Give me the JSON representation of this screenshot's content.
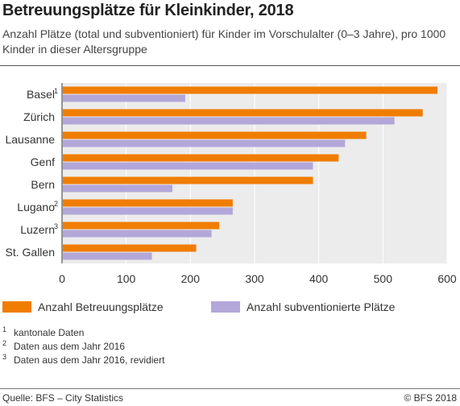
{
  "title": "Betreuungsplätze für Kleinkinder, 2018",
  "subtitle": "Anzahl Plätze (total und subventioniert) für Kinder im Vorschulalter (0–3 Jahre), pro 1000 Kinder in dieser Altersgruppe",
  "colors": {
    "total": "#f07d00",
    "subsidized": "#b3a7d9",
    "plot_bg": "#ececec",
    "grid": "#ffffff"
  },
  "chart_data": {
    "type": "bar",
    "orientation": "horizontal",
    "title": "Betreuungsplätze für Kleinkinder, 2018",
    "xlabel": "",
    "ylabel": "",
    "xlim": [
      0,
      600
    ],
    "x_ticks": [
      "0",
      "100",
      "200",
      "300",
      "400",
      "500",
      "600"
    ],
    "grid": true,
    "legend_position": "bottom",
    "categories": [
      "Basel",
      "Zürich",
      "Lausanne",
      "Genf",
      "Bern",
      "Lugano",
      "Luzern",
      "St. Gallen"
    ],
    "category_notes": [
      "1",
      "",
      "",
      "",
      "",
      "2",
      "3",
      ""
    ],
    "series": [
      {
        "name": "Anzahl Betreuungsplätze",
        "values": [
          585,
          562,
          474,
          431,
          391,
          266,
          245,
          209
        ]
      },
      {
        "name": "Anzahl subventionierte Plätze",
        "values": [
          192,
          518,
          441,
          391,
          172,
          266,
          233,
          140
        ]
      }
    ]
  },
  "footnotes": [
    {
      "mark": "1",
      "text": "kantonale Daten"
    },
    {
      "mark": "2",
      "text": "Daten aus dem Jahr 2016"
    },
    {
      "mark": "3",
      "text": "Daten aus dem Jahr 2016, revidiert"
    }
  ],
  "source": "Quelle: BFS – City Statistics",
  "copyright": "© BFS 2018"
}
